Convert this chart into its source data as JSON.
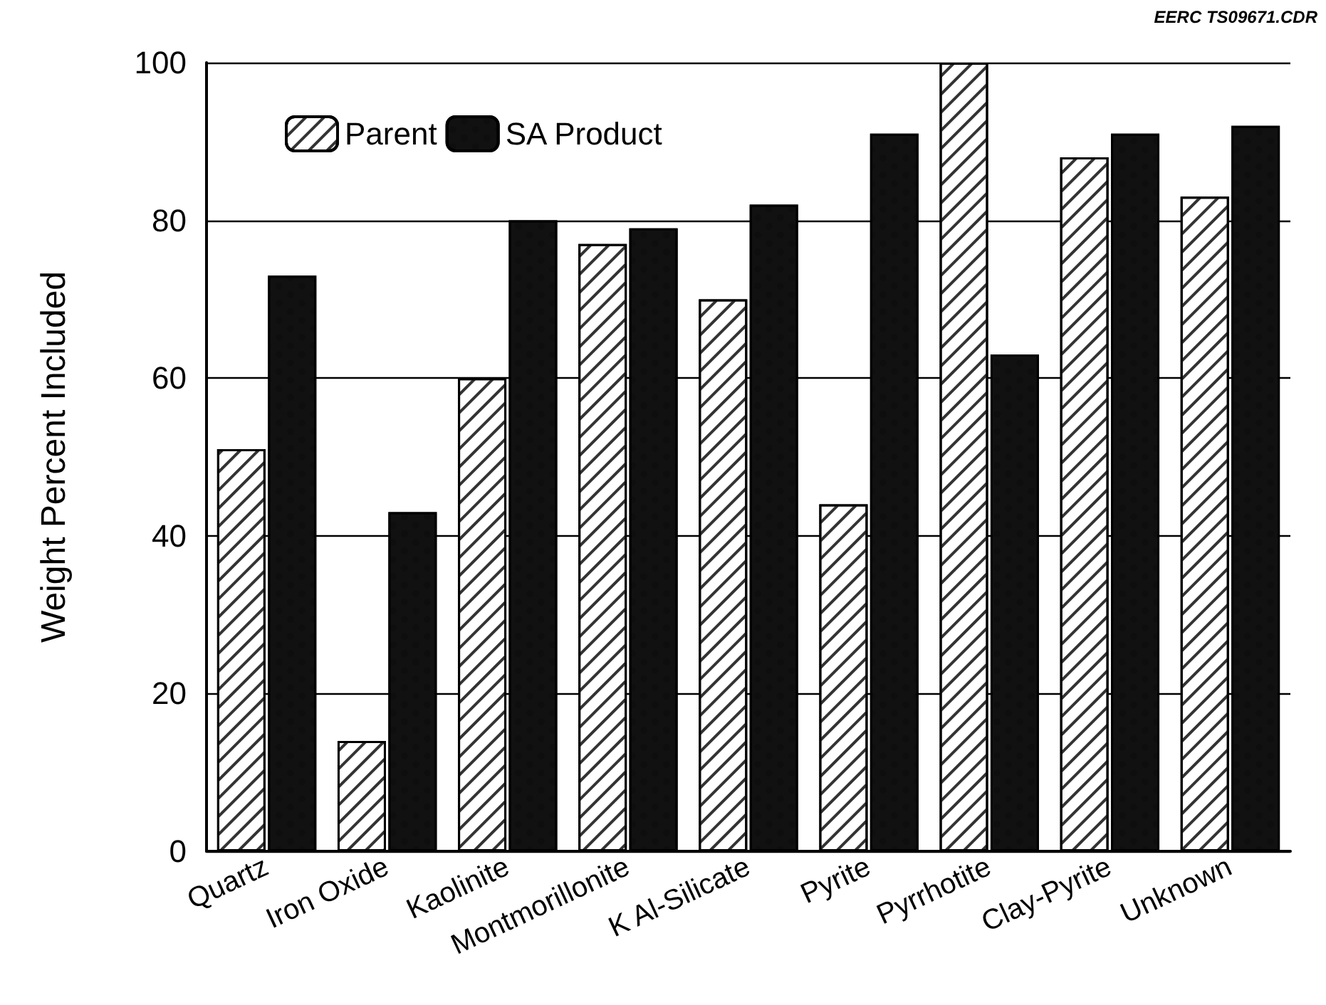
{
  "chart_data": {
    "type": "bar",
    "ylabel": "Weight Percent Included",
    "annotations": [
      "EERC TS09671.CDR"
    ],
    "categories": [
      "Quartz",
      "Iron Oxide",
      "Kaolinite",
      "Montmorillonite",
      "K Al-Silicate",
      "Pyrite",
      "Pyrrhotite",
      "Clay-Pyrite",
      "Unknown"
    ],
    "series": [
      {
        "name": "Parent",
        "color": "#ffffff",
        "values": [
          51,
          14,
          60,
          77,
          70,
          44,
          100,
          88,
          83
        ]
      },
      {
        "name": "SA Product",
        "color": "#111111",
        "values": [
          73,
          43,
          80,
          79,
          82,
          91,
          63,
          91,
          92
        ]
      }
    ],
    "ylim": [
      0,
      100
    ],
    "yticks": [
      0,
      20,
      40,
      60,
      80,
      100
    ],
    "grid": "y",
    "legend": "top left"
  }
}
